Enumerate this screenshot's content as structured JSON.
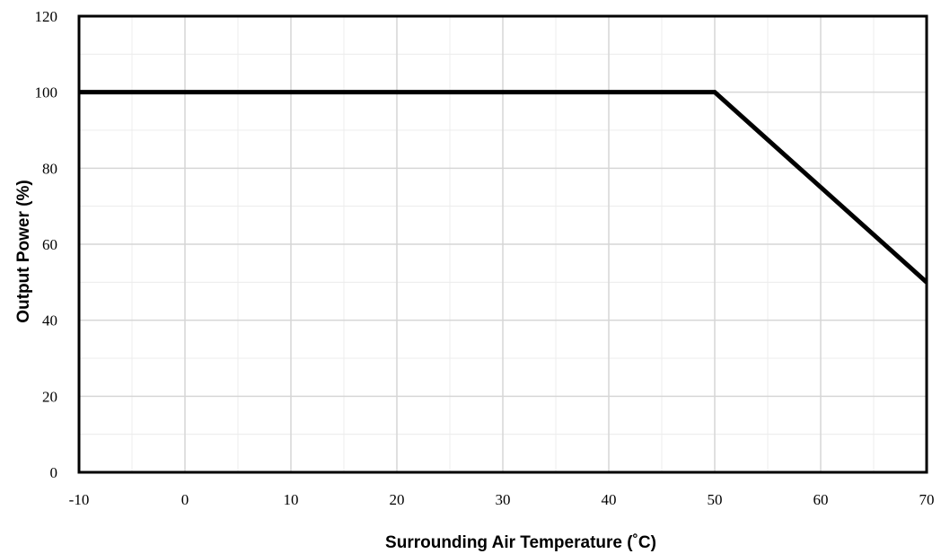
{
  "chart_data": {
    "type": "line",
    "title": "",
    "xlabel": "Surrounding Air Temperature (˚C)",
    "ylabel": "Output Power (%)",
    "xlim": [
      -10,
      70
    ],
    "ylim": [
      0,
      120
    ],
    "x_ticks": [
      -10,
      0,
      10,
      20,
      30,
      40,
      50,
      60,
      70
    ],
    "x_tick_labels": [
      "-10",
      "0",
      "10",
      "20",
      "30",
      "40",
      "50",
      "60",
      "70"
    ],
    "y_ticks": [
      0,
      20,
      40,
      60,
      80,
      100,
      120
    ],
    "y_tick_labels": [
      "0",
      "20",
      "40",
      "60",
      "80",
      "100",
      "120"
    ],
    "x_minor_gridlines": [
      -5,
      5,
      15,
      25,
      35,
      45,
      55,
      65
    ],
    "y_minor_gridlines": [
      10,
      30,
      50,
      70,
      90,
      110
    ],
    "grid": true,
    "legend": "none",
    "series": [
      {
        "x": [
          -10,
          50,
          70
        ],
        "y": [
          100,
          100,
          50
        ],
        "color": "#000000"
      }
    ]
  }
}
